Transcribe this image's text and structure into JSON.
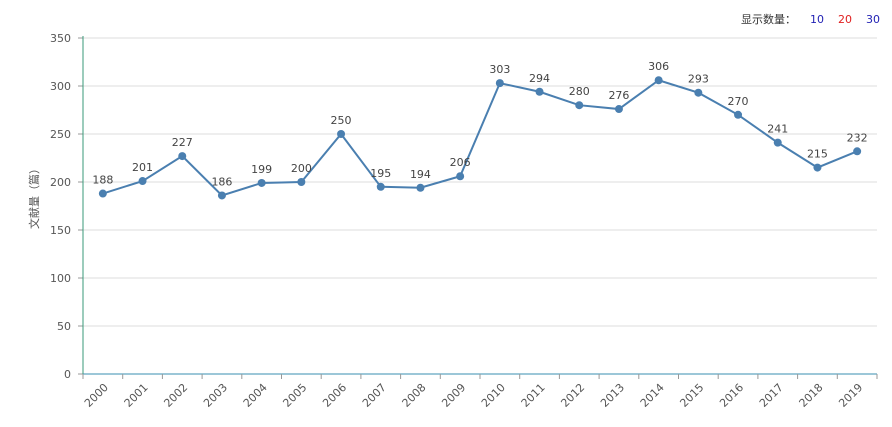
{
  "controls": {
    "label": "显示数量：",
    "options": [
      {
        "label": "10",
        "color": "#1f1fb3"
      },
      {
        "label": "20",
        "color": "#e02020"
      },
      {
        "label": "30",
        "color": "#1f1fb3"
      }
    ]
  },
  "chart_data": {
    "type": "line",
    "title": "",
    "xlabel": "",
    "ylabel": "文献量（篇）",
    "ylim": [
      0,
      350
    ],
    "yticks": [
      0,
      50,
      100,
      150,
      200,
      250,
      300,
      350
    ],
    "grid": true,
    "categories": [
      "2000",
      "2001",
      "2002",
      "2003",
      "2004",
      "2005",
      "2006",
      "2007",
      "2008",
      "2009",
      "2010",
      "2011",
      "2012",
      "2013",
      "2014",
      "2015",
      "2016",
      "2017",
      "2018",
      "2019"
    ],
    "series": [
      {
        "values": [
          188,
          201,
          227,
          186,
          199,
          200,
          250,
          195,
          194,
          206,
          303,
          294,
          280,
          276,
          306,
          293,
          270,
          241,
          215,
          232
        ],
        "color": "#4a7fb0"
      }
    ],
    "axis_colors": {
      "y": "#3a9a7a",
      "x": "#3a8fb0"
    }
  }
}
